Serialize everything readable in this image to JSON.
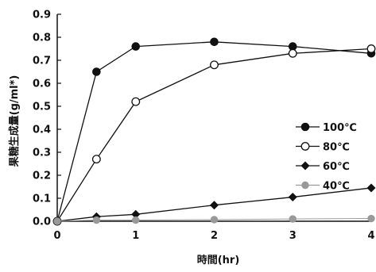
{
  "chart_data": {
    "type": "line",
    "xlabel": "時間(hr)",
    "ylabel": "果糖生成量(g/ml*)",
    "xlim": [
      0,
      4
    ],
    "ylim": [
      0,
      0.9
    ],
    "x_ticks": [
      "0",
      "1",
      "2",
      "3",
      "4"
    ],
    "y_ticks": [
      "0.0",
      "0.1",
      "0.2",
      "0.3",
      "0.4",
      "0.5",
      "0.6",
      "0.7",
      "0.8",
      "0.9"
    ],
    "grid": false,
    "legend_position": "right",
    "series": [
      {
        "name": "100℃",
        "marker": "filled-circle",
        "color": "#111111",
        "x": [
          0,
          0.5,
          1,
          2,
          3,
          4
        ],
        "y": [
          0.0,
          0.65,
          0.76,
          0.78,
          0.76,
          0.73
        ]
      },
      {
        "name": "80℃",
        "marker": "open-circle",
        "color": "#111111",
        "x": [
          0,
          0.5,
          1,
          2,
          3,
          4
        ],
        "y": [
          0.0,
          0.27,
          0.52,
          0.68,
          0.73,
          0.75
        ]
      },
      {
        "name": "60℃",
        "marker": "filled-diamond",
        "color": "#111111",
        "x": [
          0,
          0.5,
          1,
          2,
          3,
          4
        ],
        "y": [
          0.0,
          0.02,
          0.03,
          0.07,
          0.105,
          0.145
        ]
      },
      {
        "name": "40℃",
        "marker": "gray-circle",
        "color": "#999999",
        "x": [
          0,
          0.5,
          1,
          2,
          3,
          4
        ],
        "y": [
          0.0,
          0.005,
          0.005,
          0.007,
          0.01,
          0.012
        ]
      }
    ]
  }
}
